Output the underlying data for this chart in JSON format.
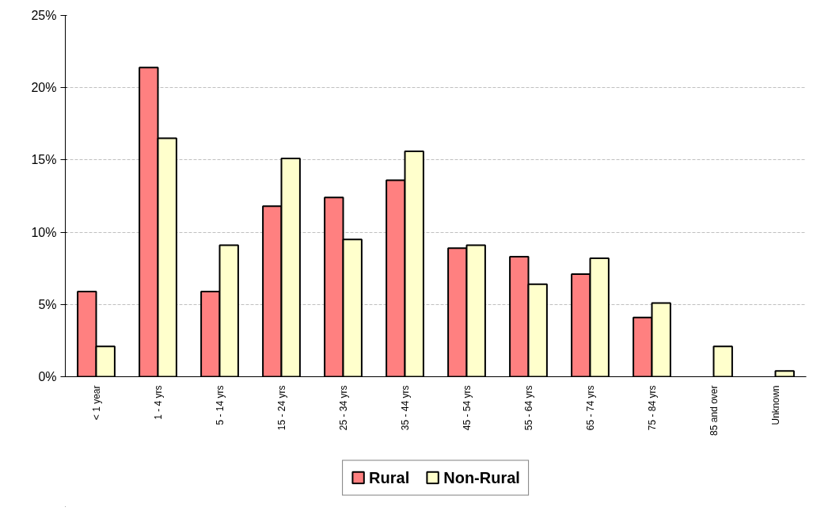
{
  "chart_data": {
    "type": "bar",
    "categories": [
      "< 1 year",
      "1 - 4 yrs",
      "5 - 14 yrs",
      "15 - 24 yrs",
      "25 - 34 yrs",
      "35 - 44 yrs",
      "45 - 54 yrs",
      "55 - 64 yrs",
      "65 - 74 yrs",
      "75 - 84 yrs",
      "85 and over",
      "Unknown"
    ],
    "series": [
      {
        "name": "Rural",
        "color": "#ff8080",
        "values": [
          5.9,
          21.4,
          5.9,
          11.8,
          12.4,
          13.6,
          8.9,
          8.3,
          7.1,
          4.1,
          null,
          null
        ]
      },
      {
        "name": "Non-Rural",
        "color": "#ffffcc",
        "values": [
          2.1,
          16.5,
          9.1,
          15.1,
          9.5,
          15.6,
          9.1,
          6.4,
          8.2,
          5.1,
          2.1,
          0.4
        ]
      }
    ],
    "ylim": [
      0,
      25
    ],
    "yticks": [
      {
        "value": 0,
        "label": "0%"
      },
      {
        "value": 5,
        "label": "5%"
      },
      {
        "value": 10,
        "label": "10%"
      },
      {
        "value": 15,
        "label": "15%"
      },
      {
        "value": 20,
        "label": "20%"
      },
      {
        "value": 25,
        "label": "25%"
      }
    ],
    "grid": "y",
    "legend": "bottom"
  }
}
